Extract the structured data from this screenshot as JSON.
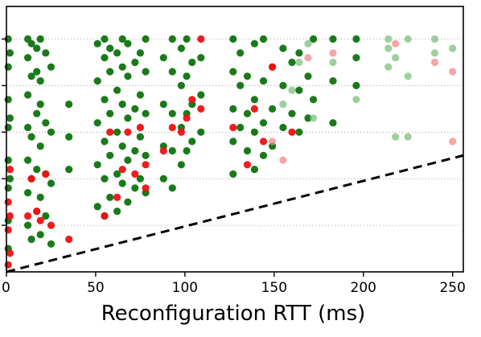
{
  "chart_data": {
    "type": "scatter",
    "title": "",
    "xlabel": "Reconfiguration RTT (ms)",
    "ylabel": "",
    "xlim": [
      0,
      256
    ],
    "ylim": [
      0,
      5.7
    ],
    "x_ticks": [
      0,
      50,
      100,
      150,
      200,
      250
    ],
    "x_tick_labels": [
      "0",
      "50",
      "100",
      "150",
      "200",
      "250"
    ],
    "y_ticks": [
      1,
      2,
      3,
      4,
      5
    ],
    "grid": "horizontal dotted",
    "legend": "none",
    "reference_line": {
      "style": "dashed",
      "color": "#000000",
      "points": [
        [
          0,
          0
        ],
        [
          256,
          2.5
        ]
      ]
    },
    "colors": {
      "green": "#1a7a1a",
      "red": "#ee1111",
      "faded_green": "#7fbf7f",
      "faded_red": "#f08a8a"
    },
    "column_x": [
      1,
      2,
      12,
      14,
      17,
      19,
      22,
      25,
      35,
      51,
      55,
      58,
      62,
      65,
      68,
      72,
      75,
      78,
      88,
      93,
      98,
      101,
      104,
      109,
      127,
      131,
      135,
      139,
      144,
      149,
      155,
      160,
      164,
      169,
      172,
      183,
      196,
      214,
      218,
      225,
      240,
      250
    ],
    "series": [
      {
        "name": "green",
        "points": [
          [
            1,
            0.5
          ],
          [
            1,
            1.1
          ],
          [
            1,
            1.8
          ],
          [
            1,
            2.4
          ],
          [
            1,
            3.1
          ],
          [
            1,
            3.7
          ],
          [
            1,
            4.4
          ],
          [
            1,
            5.0
          ],
          [
            2,
            4.7
          ],
          [
            2,
            3.3
          ],
          [
            2,
            2.0
          ],
          [
            12,
            1.0
          ],
          [
            12,
            1.7
          ],
          [
            12,
            2.4
          ],
          [
            12,
            3.1
          ],
          [
            12,
            3.8
          ],
          [
            12,
            4.6
          ],
          [
            12,
            5.0
          ],
          [
            14,
            0.7
          ],
          [
            14,
            2.0
          ],
          [
            14,
            2.9
          ],
          [
            14,
            4.2
          ],
          [
            14,
            4.9
          ],
          [
            17,
            1.3
          ],
          [
            17,
            2.2
          ],
          [
            17,
            3.4
          ],
          [
            17,
            4.3
          ],
          [
            17,
            4.8
          ],
          [
            19,
            0.8
          ],
          [
            19,
            1.6
          ],
          [
            19,
            2.7
          ],
          [
            19,
            3.6
          ],
          [
            19,
            4.1
          ],
          [
            19,
            5.0
          ],
          [
            22,
            1.2
          ],
          [
            22,
            2.1
          ],
          [
            22,
            3.2
          ],
          [
            22,
            4.7
          ],
          [
            25,
            0.6
          ],
          [
            25,
            1.9
          ],
          [
            25,
            3.0
          ],
          [
            25,
            4.4
          ],
          [
            35,
            2.2
          ],
          [
            35,
            2.9
          ],
          [
            35,
            3.6
          ],
          [
            51,
            1.4
          ],
          [
            51,
            2.3
          ],
          [
            51,
            3.2
          ],
          [
            51,
            4.1
          ],
          [
            51,
            4.9
          ],
          [
            55,
            1.2
          ],
          [
            55,
            2.0
          ],
          [
            55,
            2.8
          ],
          [
            55,
            3.7
          ],
          [
            55,
            4.6
          ],
          [
            55,
            5.0
          ],
          [
            58,
            1.6
          ],
          [
            58,
            2.5
          ],
          [
            58,
            3.4
          ],
          [
            58,
            4.3
          ],
          [
            58,
            4.8
          ],
          [
            62,
            1.3
          ],
          [
            62,
            2.1
          ],
          [
            62,
            3.0
          ],
          [
            62,
            3.9
          ],
          [
            62,
            4.7
          ],
          [
            65,
            1.9
          ],
          [
            65,
            2.7
          ],
          [
            65,
            3.6
          ],
          [
            65,
            4.4
          ],
          [
            65,
            5.0
          ],
          [
            68,
            1.5
          ],
          [
            68,
            2.4
          ],
          [
            68,
            3.3
          ],
          [
            68,
            4.2
          ],
          [
            68,
            4.9
          ],
          [
            72,
            1.8
          ],
          [
            72,
            2.6
          ],
          [
            72,
            3.5
          ],
          [
            72,
            4.5
          ],
          [
            75,
            2.0
          ],
          [
            75,
            2.9
          ],
          [
            75,
            3.8
          ],
          [
            75,
            4.7
          ],
          [
            78,
            1.7
          ],
          [
            78,
            2.5
          ],
          [
            78,
            3.4
          ],
          [
            78,
            4.3
          ],
          [
            78,
            5.0
          ],
          [
            88,
            2.0
          ],
          [
            88,
            2.7
          ],
          [
            88,
            3.6
          ],
          [
            88,
            4.6
          ],
          [
            93,
            1.8
          ],
          [
            93,
            2.6
          ],
          [
            93,
            3.4
          ],
          [
            93,
            4.3
          ],
          [
            93,
            5.0
          ],
          [
            98,
            2.3
          ],
          [
            98,
            3.1
          ],
          [
            98,
            4.0
          ],
          [
            98,
            4.8
          ],
          [
            101,
            2.6
          ],
          [
            101,
            3.4
          ],
          [
            101,
            4.2
          ],
          [
            101,
            5.0
          ],
          [
            104,
            2.8
          ],
          [
            104,
            3.6
          ],
          [
            104,
            4.5
          ],
          [
            109,
            3.0
          ],
          [
            109,
            3.8
          ],
          [
            109,
            4.6
          ],
          [
            127,
            2.1
          ],
          [
            127,
            2.8
          ],
          [
            127,
            3.5
          ],
          [
            127,
            4.3
          ],
          [
            127,
            5.0
          ],
          [
            131,
            3.1
          ],
          [
            131,
            4.0
          ],
          [
            131,
            4.7
          ],
          [
            135,
            2.6
          ],
          [
            135,
            3.4
          ],
          [
            135,
            4.2
          ],
          [
            139,
            2.2
          ],
          [
            139,
            3.0
          ],
          [
            139,
            3.7
          ],
          [
            139,
            4.9
          ],
          [
            144,
            2.5
          ],
          [
            144,
            3.2
          ],
          [
            144,
            4.1
          ],
          [
            144,
            5.0
          ],
          [
            149,
            2.7
          ],
          [
            149,
            3.5
          ],
          [
            149,
            4.4
          ],
          [
            155,
            3.1
          ],
          [
            155,
            4.0
          ],
          [
            155,
            4.8
          ],
          [
            160,
            3.4
          ],
          [
            160,
            4.5
          ],
          [
            164,
            3.0
          ],
          [
            164,
            3.9
          ],
          [
            164,
            4.7
          ],
          [
            169,
            3.3
          ],
          [
            169,
            4.2
          ],
          [
            172,
            3.7
          ],
          [
            172,
            5.0
          ],
          [
            183,
            3.2
          ],
          [
            183,
            4.1
          ],
          [
            183,
            5.0
          ],
          [
            196,
            4.0
          ],
          [
            196,
            4.6
          ],
          [
            196,
            5.0
          ]
        ]
      },
      {
        "name": "red",
        "points": [
          [
            1,
            0.15
          ],
          [
            1,
            0.9
          ],
          [
            1,
            1.5
          ],
          [
            2,
            0.4
          ],
          [
            2,
            1.2
          ],
          [
            2,
            2.2
          ],
          [
            12,
            1.2
          ],
          [
            14,
            2.0
          ],
          [
            17,
            1.3
          ],
          [
            19,
            1.1
          ],
          [
            22,
            2.1
          ],
          [
            25,
            1.0
          ],
          [
            35,
            0.7
          ],
          [
            55,
            1.2
          ],
          [
            58,
            3.0
          ],
          [
            62,
            1.6
          ],
          [
            65,
            2.2
          ],
          [
            68,
            3.0
          ],
          [
            72,
            2.1
          ],
          [
            75,
            3.1
          ],
          [
            78,
            1.8
          ],
          [
            78,
            2.3
          ],
          [
            88,
            2.6
          ],
          [
            93,
            3.1
          ],
          [
            98,
            3.0
          ],
          [
            101,
            3.3
          ],
          [
            104,
            3.7
          ],
          [
            109,
            3.5
          ],
          [
            109,
            5.0
          ],
          [
            127,
            3.1
          ],
          [
            135,
            2.3
          ],
          [
            139,
            3.5
          ],
          [
            144,
            2.8
          ],
          [
            149,
            4.4
          ],
          [
            160,
            3.0
          ]
        ]
      },
      {
        "name": "faded green",
        "points": [
          [
            155,
            3.6
          ],
          [
            160,
            3.9
          ],
          [
            164,
            4.5
          ],
          [
            169,
            4.9
          ],
          [
            172,
            3.3
          ],
          [
            183,
            4.5
          ],
          [
            196,
            3.7
          ],
          [
            214,
            4.4
          ],
          [
            214,
            4.8
          ],
          [
            214,
            5.0
          ],
          [
            218,
            2.9
          ],
          [
            218,
            4.6
          ],
          [
            225,
            2.9
          ],
          [
            225,
            4.2
          ],
          [
            225,
            5.0
          ],
          [
            240,
            4.7
          ],
          [
            240,
            5.0
          ],
          [
            250,
            4.8
          ]
        ]
      },
      {
        "name": "faded red",
        "points": [
          [
            149,
            2.8
          ],
          [
            155,
            2.4
          ],
          [
            169,
            4.6
          ],
          [
            183,
            4.7
          ],
          [
            218,
            4.9
          ],
          [
            240,
            4.5
          ],
          [
            250,
            4.3
          ],
          [
            250,
            2.8
          ]
        ]
      }
    ]
  }
}
